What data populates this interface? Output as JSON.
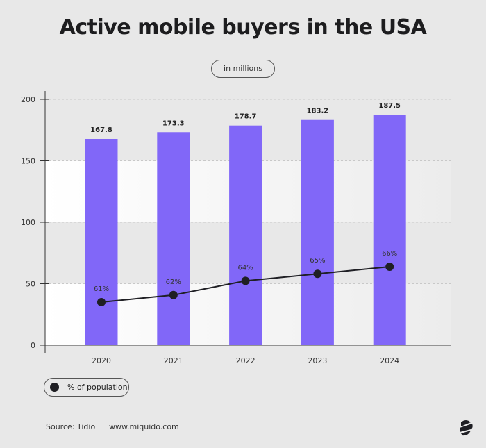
{
  "title": "Active mobile buyers in the USA",
  "unit_badge": "in millions",
  "legend": {
    "label": "% of population"
  },
  "footer": {
    "source": "Source: Tidio",
    "website": "www.miquido.com"
  },
  "colors": {
    "bar": "#8167f8",
    "line": "#1f1f24",
    "background": "#e8e8e8"
  },
  "chart_data": {
    "type": "bar",
    "title": "Active mobile buyers in the USA",
    "categories": [
      "2020",
      "2021",
      "2022",
      "2023",
      "2024"
    ],
    "values": [
      167.8,
      173.3,
      178.7,
      183.2,
      187.5
    ],
    "value_labels": [
      "167.8",
      "173.3",
      "178.7",
      "183.2",
      "187.5"
    ],
    "ylim": [
      0,
      200
    ],
    "yticks": [
      0,
      50,
      100,
      150,
      200
    ],
    "grid": true,
    "overlay_line": {
      "name": "% of population",
      "values": [
        61,
        62,
        64,
        65,
        66
      ],
      "labels": [
        "61%",
        "62%",
        "64%",
        "65%",
        "66%"
      ]
    },
    "legend_position": "bottom-left"
  }
}
